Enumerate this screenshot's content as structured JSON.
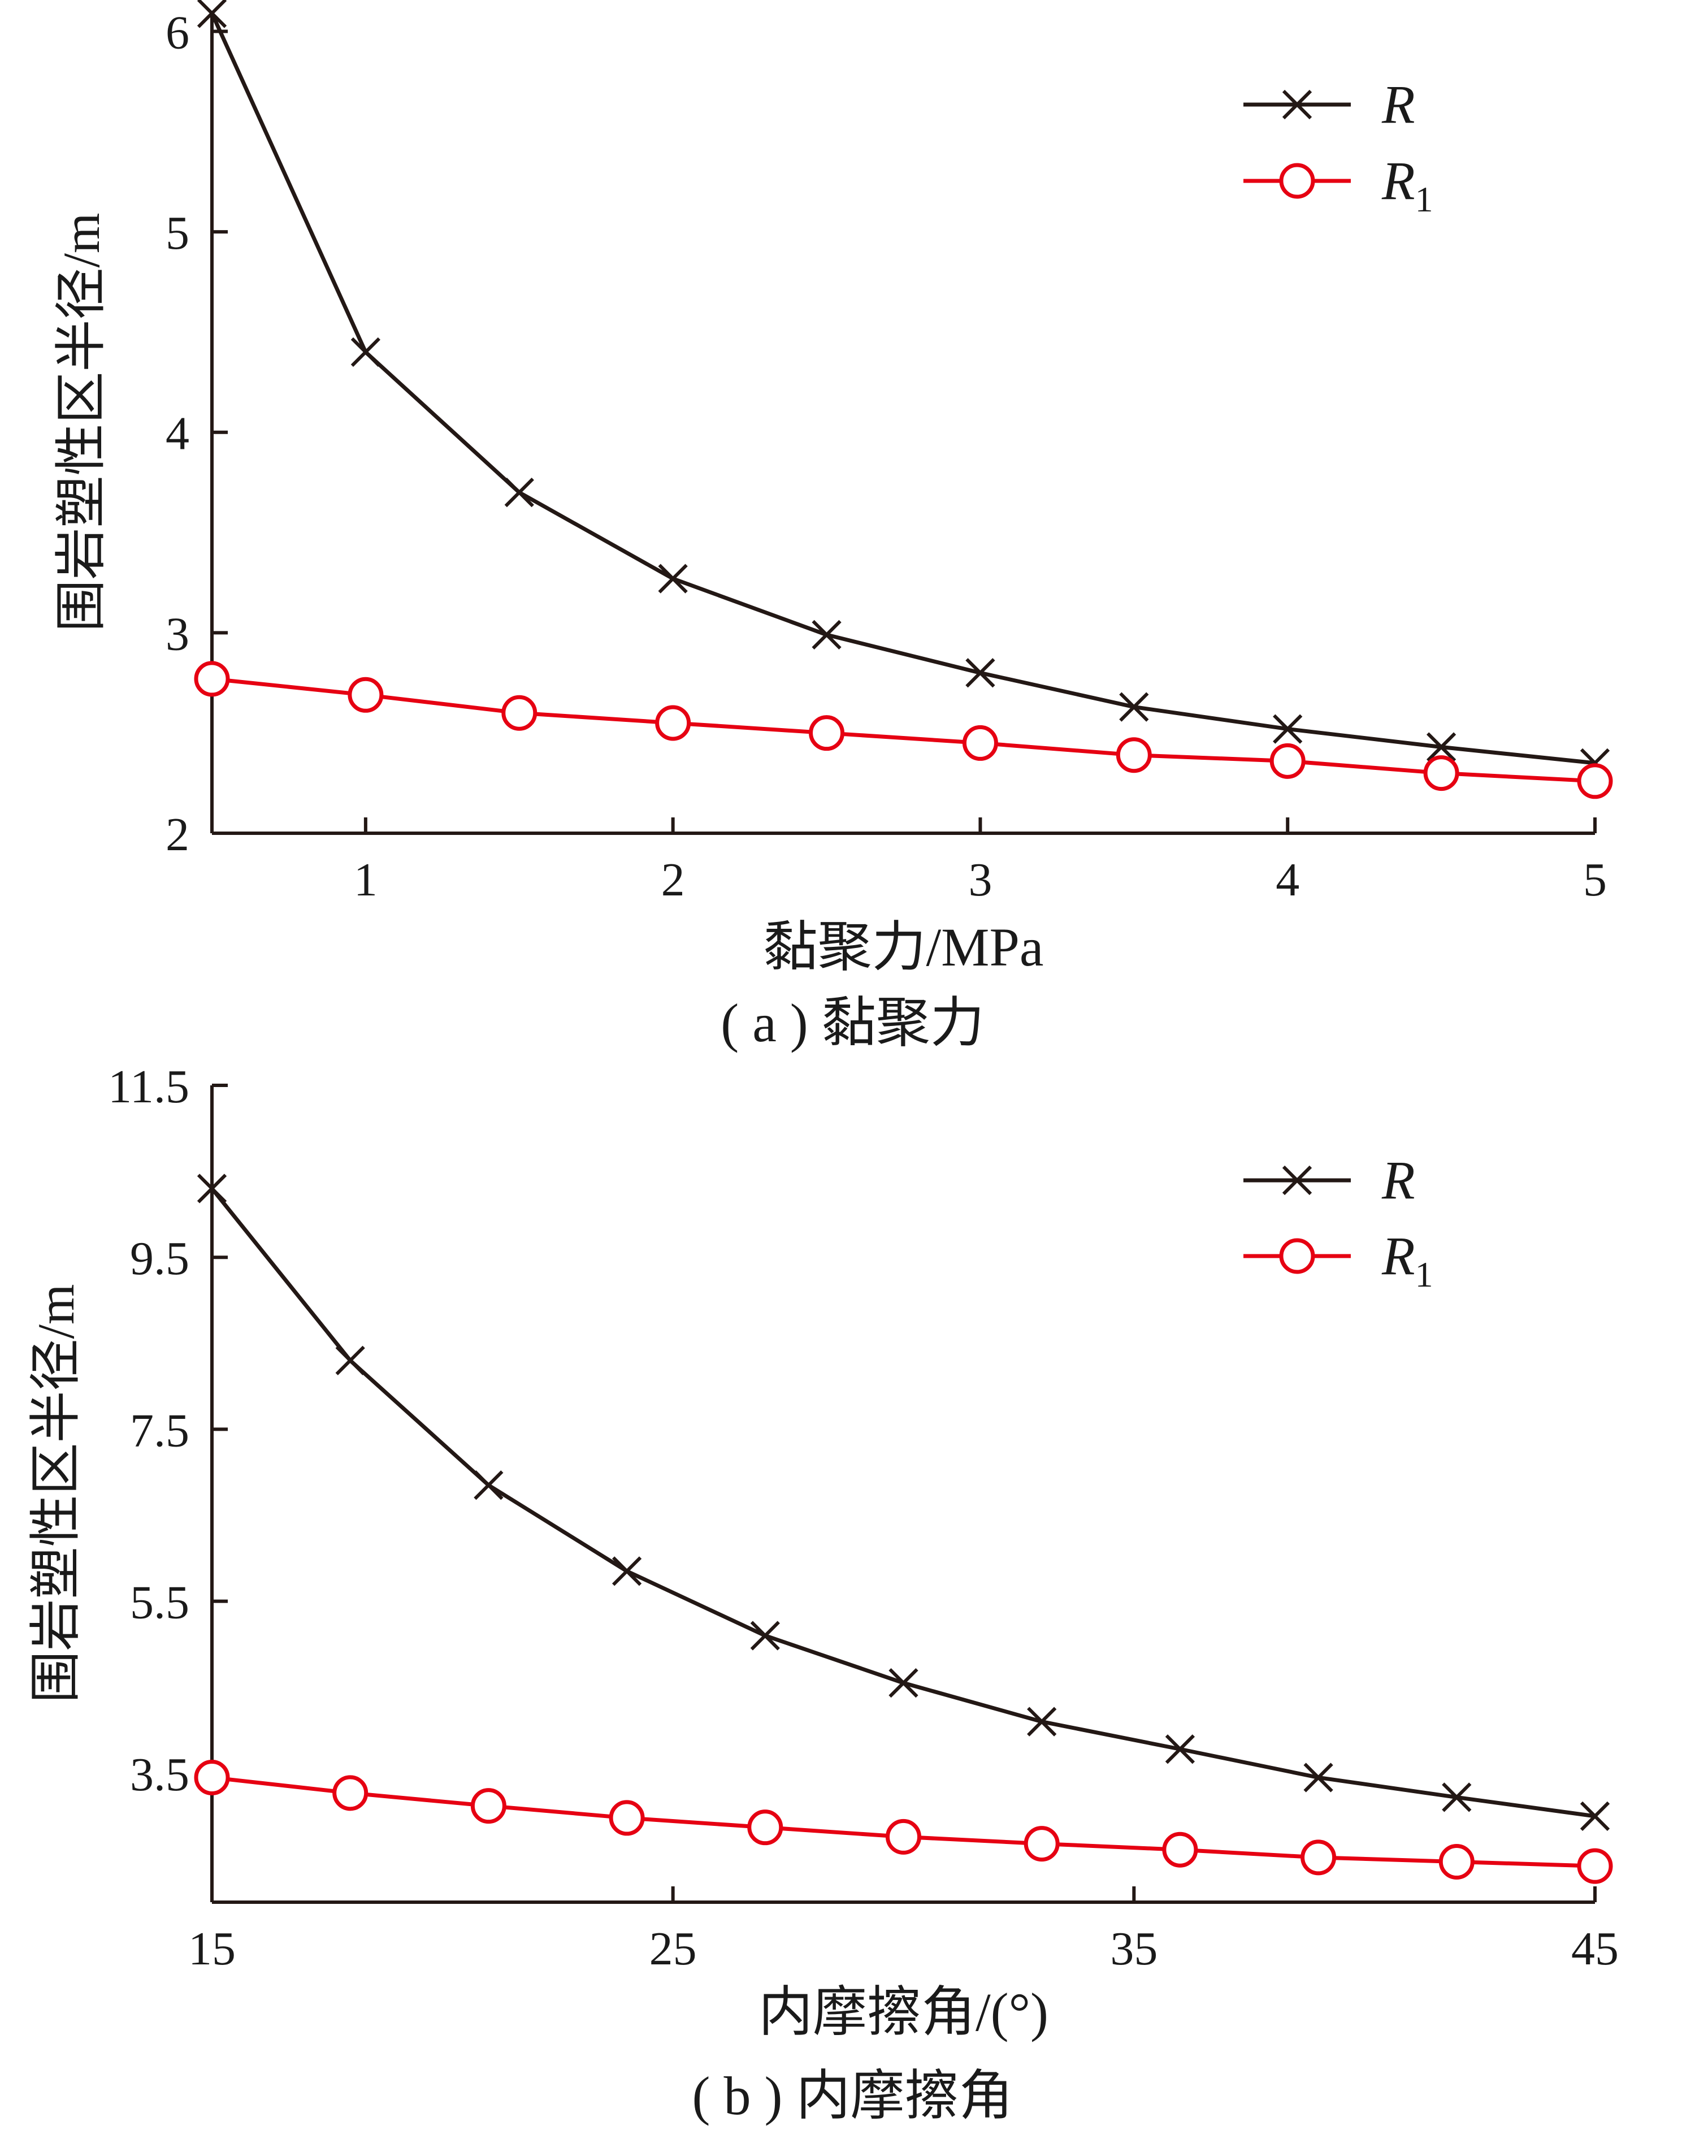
{
  "colors": {
    "R": "#231815",
    "R1": "#e60012",
    "axis": "#231815"
  },
  "legend_position": "top-right",
  "chart_data": [
    {
      "type": "line",
      "xlabel": "黏聚力/MPa",
      "ylabel": "围岩塑性区半径/m",
      "caption": "( a ) 黏聚力",
      "xlim": [
        0.5,
        5
      ],
      "ylim": [
        2,
        6.1
      ],
      "x_ticks": [
        1,
        2,
        3,
        4,
        5
      ],
      "y_ticks": [
        2,
        3,
        4,
        5,
        6
      ],
      "x": [
        0.5,
        1,
        1.5,
        2,
        2.5,
        3,
        3.5,
        4,
        4.5,
        5
      ],
      "series": [
        {
          "name": "R",
          "name_sub": "",
          "marker": "x",
          "values": [
            6.09,
            4.4,
            3.7,
            3.27,
            2.99,
            2.8,
            2.63,
            2.52,
            2.43,
            2.35
          ]
        },
        {
          "name": "R",
          "name_sub": "1",
          "marker": "circle",
          "values": [
            2.77,
            2.69,
            2.6,
            2.55,
            2.5,
            2.45,
            2.39,
            2.36,
            2.3,
            2.26
          ]
        }
      ]
    },
    {
      "type": "line",
      "xlabel": "内摩擦角/(°)",
      "ylabel": "围岩塑性区半径/m",
      "caption": "( b ) 内摩擦角",
      "xlim": [
        15,
        45
      ],
      "ylim": [
        2,
        11.5
      ],
      "x_ticks": [
        15,
        25,
        35,
        45
      ],
      "y_ticks": [
        3.5,
        5.5,
        7.5,
        9.5,
        11.5
      ],
      "x": [
        15,
        18,
        21,
        24,
        27,
        30,
        33,
        36,
        39,
        42,
        45
      ],
      "series": [
        {
          "name": "R",
          "name_sub": "",
          "marker": "x",
          "values": [
            10.3,
            8.3,
            6.85,
            5.85,
            5.1,
            4.55,
            4.1,
            3.78,
            3.45,
            3.22,
            3.0
          ]
        },
        {
          "name": "R",
          "name_sub": "1",
          "marker": "circle",
          "values": [
            3.45,
            3.27,
            3.12,
            2.98,
            2.87,
            2.76,
            2.68,
            2.61,
            2.52,
            2.47,
            2.42
          ]
        }
      ]
    }
  ]
}
